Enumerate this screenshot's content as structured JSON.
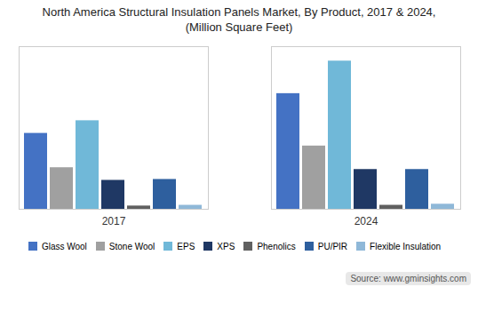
{
  "chart_data": {
    "type": "bar",
    "title": "North America Structural Insulation Panels Market, By Product, 2017 & 2024,\n(Million Square Feet)",
    "caption": "Source: www.gminsights.com",
    "categories": [
      "2017",
      "2024"
    ],
    "series": [
      {
        "name": "Glass Wool",
        "color": "#4472c4",
        "values": [
          420,
          640
        ]
      },
      {
        "name": "Stone Wool",
        "color": "#a0a0a0",
        "values": [
          230,
          350
        ]
      },
      {
        "name": "EPS",
        "color": "#70b8d8",
        "values": [
          490,
          820
        ]
      },
      {
        "name": "XPS",
        "color": "#1f3864",
        "values": [
          160,
          220
        ]
      },
      {
        "name": "Phenolics",
        "color": "#606060",
        "values": [
          18,
          22
        ]
      },
      {
        "name": "PU/PIR",
        "color": "#2e5f9e",
        "values": [
          165,
          220
        ]
      },
      {
        "name": "Flexible Insulation",
        "color": "#8fb8d8",
        "values": [
          22,
          28
        ]
      }
    ],
    "ylim": [
      0,
      900
    ],
    "tick_labels": "x",
    "grid": false,
    "legend": "bottom"
  }
}
